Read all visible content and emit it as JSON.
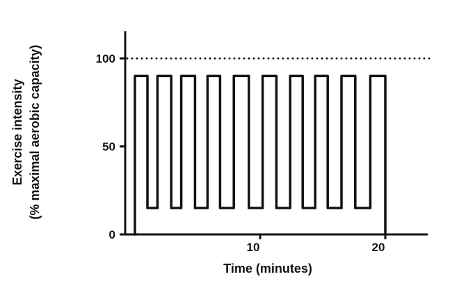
{
  "chart_data": {
    "type": "line",
    "title": "",
    "xlabel": "Time (minutes)",
    "ylabel": [
      "Exercise intensity",
      "(% maximal aerobic capacity)"
    ],
    "xlim": [
      0,
      23.4
    ],
    "ylim": [
      0,
      115
    ],
    "xticks": [
      10,
      20
    ],
    "yticks": [
      0,
      50,
      100
    ],
    "grid": false,
    "reference_line": {
      "y": 100,
      "style": "dotted"
    },
    "series": [
      {
        "points": [
          [
            0,
            0
          ],
          [
            0,
            90
          ],
          [
            1.0,
            90
          ],
          [
            1.0,
            15
          ],
          [
            1.8,
            15
          ],
          [
            1.8,
            90
          ],
          [
            2.9,
            90
          ],
          [
            2.9,
            15
          ],
          [
            3.7,
            15
          ],
          [
            3.7,
            90
          ],
          [
            4.8,
            90
          ],
          [
            4.8,
            15
          ],
          [
            5.8,
            15
          ],
          [
            5.8,
            90
          ],
          [
            6.8,
            90
          ],
          [
            6.8,
            15
          ],
          [
            7.9,
            15
          ],
          [
            7.9,
            90
          ],
          [
            9.1,
            90
          ],
          [
            9.1,
            15
          ],
          [
            10.2,
            15
          ],
          [
            10.2,
            90
          ],
          [
            11.3,
            90
          ],
          [
            11.3,
            15
          ],
          [
            12.4,
            15
          ],
          [
            12.4,
            90
          ],
          [
            13.4,
            90
          ],
          [
            13.4,
            15
          ],
          [
            14.4,
            15
          ],
          [
            14.4,
            90
          ],
          [
            15.4,
            90
          ],
          [
            15.4,
            15
          ],
          [
            16.5,
            15
          ],
          [
            16.5,
            90
          ],
          [
            17.6,
            90
          ],
          [
            17.6,
            15
          ],
          [
            18.8,
            15
          ],
          [
            18.8,
            90
          ],
          [
            20,
            90
          ],
          [
            20,
            0
          ]
        ],
        "color": "#111111"
      }
    ]
  }
}
